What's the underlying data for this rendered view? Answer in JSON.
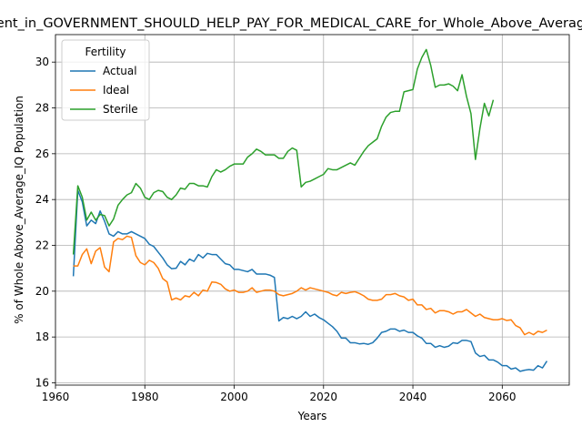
{
  "chart_data": {
    "type": "line",
    "title": "Percent_in_GOVERNMENT_SHOULD_HELP_PAY_FOR_MEDICAL_CARE_for_Whole_Above_Average_IQ",
    "xlabel": "Years",
    "ylabel": "% of Whole Above_Average_IQ Population",
    "xlim": [
      1960,
      2075
    ],
    "ylim": [
      15.9,
      31.2
    ],
    "xticks": [
      1960,
      1980,
      2000,
      2020,
      2040,
      2060
    ],
    "yticks": [
      16,
      18,
      20,
      22,
      24,
      26,
      28,
      30
    ],
    "grid": true,
    "legend": {
      "title": "Fertility",
      "placement": "top-left"
    },
    "series": [
      {
        "name": "Actual",
        "color": "#1f77b4",
        "x": [
          1964,
          1965,
          1966,
          1967,
          1968,
          1969,
          1970,
          1971,
          1972,
          1973,
          1974,
          1975,
          1976,
          1977,
          1978,
          1979,
          1980,
          1981,
          1982,
          1983,
          1984,
          1985,
          1986,
          1987,
          1988,
          1989,
          1990,
          1991,
          1992,
          1993,
          1994,
          1995,
          1996,
          1997,
          1998,
          1999,
          2000,
          2001,
          2002,
          2003,
          2004,
          2005,
          2006,
          2007,
          2008,
          2009,
          2010,
          2011,
          2012,
          2013,
          2014,
          2015,
          2016,
          2017,
          2018,
          2019,
          2020,
          2021,
          2022,
          2023,
          2024,
          2025,
          2026,
          2027,
          2028,
          2029,
          2030,
          2031,
          2032,
          2033,
          2034,
          2035,
          2036,
          2037,
          2038,
          2039,
          2040,
          2041,
          2042,
          2043,
          2044,
          2045,
          2046,
          2047,
          2048,
          2049,
          2050,
          2051,
          2052,
          2053,
          2054,
          2055,
          2056,
          2057,
          2058,
          2059,
          2060,
          2061,
          2062,
          2063,
          2064,
          2065,
          2066,
          2067,
          2068,
          2069,
          2070
        ],
        "values": [
          20.65,
          24.4,
          23.9,
          22.85,
          23.1,
          22.95,
          23.5,
          23.05,
          22.5,
          22.4,
          22.6,
          22.5,
          22.5,
          22.6,
          22.5,
          22.4,
          22.3,
          22.05,
          21.95,
          21.7,
          21.45,
          21.15,
          20.98,
          21.0,
          21.3,
          21.15,
          21.4,
          21.3,
          21.6,
          21.45,
          21.65,
          21.6,
          21.6,
          21.4,
          21.2,
          21.15,
          20.95,
          20.95,
          20.9,
          20.85,
          20.95,
          20.75,
          20.75,
          20.75,
          20.7,
          20.6,
          18.7,
          18.85,
          18.8,
          18.9,
          18.8,
          18.9,
          19.1,
          18.9,
          19.0,
          18.85,
          18.75,
          18.6,
          18.45,
          18.25,
          17.95,
          17.95,
          17.75,
          17.75,
          17.7,
          17.72,
          17.68,
          17.75,
          17.95,
          18.2,
          18.25,
          18.35,
          18.35,
          18.25,
          18.3,
          18.2,
          18.2,
          18.05,
          17.95,
          17.72,
          17.72,
          17.55,
          17.62,
          17.55,
          17.6,
          17.75,
          17.72,
          17.85,
          17.85,
          17.8,
          17.3,
          17.15,
          17.2,
          17.0,
          17.0,
          16.9,
          16.75,
          16.75,
          16.6,
          16.65,
          16.5,
          16.55,
          16.58,
          16.55,
          16.75,
          16.65,
          16.95
        ]
      },
      {
        "name": "Ideal",
        "color": "#ff7f0e",
        "x": [
          1964,
          1965,
          1966,
          1967,
          1968,
          1969,
          1970,
          1971,
          1972,
          1973,
          1974,
          1975,
          1976,
          1977,
          1978,
          1979,
          1980,
          1981,
          1982,
          1983,
          1984,
          1985,
          1986,
          1987,
          1988,
          1989,
          1990,
          1991,
          1992,
          1993,
          1994,
          1995,
          1996,
          1997,
          1998,
          1999,
          2000,
          2001,
          2002,
          2003,
          2004,
          2005,
          2006,
          2007,
          2008,
          2009,
          2010,
          2011,
          2012,
          2013,
          2014,
          2015,
          2016,
          2017,
          2018,
          2019,
          2020,
          2021,
          2022,
          2023,
          2024,
          2025,
          2026,
          2027,
          2028,
          2029,
          2030,
          2031,
          2032,
          2033,
          2034,
          2035,
          2036,
          2037,
          2038,
          2039,
          2040,
          2041,
          2042,
          2043,
          2044,
          2045,
          2046,
          2047,
          2048,
          2049,
          2050,
          2051,
          2052,
          2053,
          2054,
          2055,
          2056,
          2057,
          2058,
          2059,
          2060,
          2061,
          2062,
          2063,
          2064,
          2065,
          2066,
          2067,
          2068,
          2069,
          2070
        ],
        "values": [
          21.1,
          21.1,
          21.6,
          21.85,
          21.2,
          21.75,
          21.9,
          21.05,
          20.85,
          22.15,
          22.3,
          22.25,
          22.4,
          22.35,
          21.55,
          21.25,
          21.15,
          21.35,
          21.25,
          21.0,
          20.55,
          20.4,
          19.62,
          19.7,
          19.62,
          19.8,
          19.75,
          19.95,
          19.8,
          20.05,
          20.0,
          20.4,
          20.38,
          20.3,
          20.1,
          20.0,
          20.05,
          19.95,
          19.95,
          20.0,
          20.15,
          19.95,
          20.0,
          20.05,
          20.05,
          20.0,
          19.85,
          19.8,
          19.85,
          19.9,
          20.0,
          20.15,
          20.05,
          20.15,
          20.1,
          20.05,
          20.0,
          19.95,
          19.85,
          19.8,
          19.95,
          19.9,
          19.95,
          19.98,
          19.9,
          19.8,
          19.65,
          19.6,
          19.6,
          19.65,
          19.85,
          19.85,
          19.9,
          19.8,
          19.75,
          19.6,
          19.65,
          19.4,
          19.4,
          19.2,
          19.25,
          19.05,
          19.15,
          19.15,
          19.1,
          19.0,
          19.1,
          19.1,
          19.2,
          19.05,
          18.9,
          19.0,
          18.85,
          18.8,
          18.75,
          18.75,
          18.8,
          18.72,
          18.75,
          18.5,
          18.4,
          18.1,
          18.2,
          18.1,
          18.25,
          18.2,
          18.3
        ]
      },
      {
        "name": "Sterile",
        "color": "#2ca02c",
        "x": [
          1964,
          1965,
          1966,
          1967,
          1968,
          1969,
          1970,
          1971,
          1972,
          1973,
          1974,
          1975,
          1976,
          1977,
          1978,
          1979,
          1980,
          1981,
          1982,
          1983,
          1984,
          1985,
          1986,
          1987,
          1988,
          1989,
          1990,
          1991,
          1992,
          1993,
          1994,
          1995,
          1996,
          1997,
          1998,
          1999,
          2000,
          2001,
          2002,
          2003,
          2004,
          2005,
          2006,
          2007,
          2008,
          2009,
          2010,
          2011,
          2012,
          2013,
          2014,
          2015,
          2016,
          2017,
          2018,
          2019,
          2020,
          2021,
          2022,
          2023,
          2024,
          2025,
          2026,
          2027,
          2028,
          2029,
          2030,
          2031,
          2032,
          2033,
          2034,
          2035,
          2036,
          2037,
          2038,
          2039,
          2040,
          2041,
          2042,
          2043,
          2044,
          2045,
          2046,
          2047,
          2048,
          2049,
          2050,
          2051,
          2052,
          2053,
          2054,
          2055,
          2056,
          2057,
          2058
        ],
        "values": [
          21.6,
          24.6,
          24.1,
          23.1,
          23.45,
          23.1,
          23.35,
          23.3,
          22.85,
          23.15,
          23.75,
          24.0,
          24.2,
          24.3,
          24.7,
          24.5,
          24.1,
          24.0,
          24.3,
          24.4,
          24.35,
          24.1,
          24.0,
          24.2,
          24.5,
          24.45,
          24.7,
          24.7,
          24.6,
          24.6,
          24.55,
          25.0,
          25.3,
          25.2,
          25.3,
          25.45,
          25.55,
          25.55,
          25.55,
          25.85,
          26.0,
          26.2,
          26.1,
          25.95,
          25.95,
          25.95,
          25.8,
          25.8,
          26.1,
          26.25,
          26.15,
          24.55,
          24.75,
          24.8,
          24.9,
          25.0,
          25.1,
          25.35,
          25.3,
          25.3,
          25.4,
          25.5,
          25.6,
          25.5,
          25.8,
          26.1,
          26.35,
          26.5,
          26.65,
          27.2,
          27.6,
          27.8,
          27.85,
          27.85,
          28.7,
          28.75,
          28.8,
          29.7,
          30.2,
          30.55,
          29.85,
          28.9,
          29.0,
          29.0,
          29.05,
          28.95,
          28.75,
          29.45,
          28.5,
          27.75,
          25.75,
          27.1,
          28.2,
          27.65,
          28.35
        ]
      }
    ]
  }
}
